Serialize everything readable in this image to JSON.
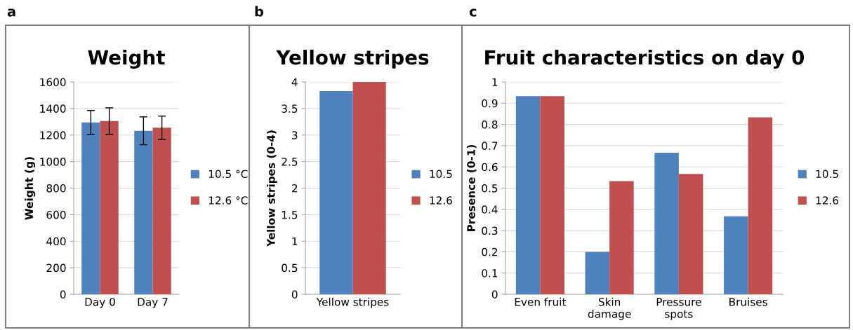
{
  "chart_data": [
    {
      "type": "bar",
      "title": "Weight",
      "ylabel": "Weight (g)",
      "annotations": [
        "a"
      ],
      "categories": [
        "Day 0",
        "Day 7"
      ],
      "series": [
        {
          "name": "10.5 °C",
          "color": "#4f81bd",
          "values": [
            1295,
            1232
          ],
          "errors": [
            90,
            105
          ]
        },
        {
          "name": "12.6 °C",
          "color": "#c0504d",
          "values": [
            1305,
            1255
          ],
          "errors": [
            100,
            88
          ]
        }
      ],
      "ylim": [
        0,
        1600
      ],
      "yticks": [
        0,
        200,
        400,
        600,
        800,
        1000,
        1200,
        1400,
        1600
      ],
      "grid": "y",
      "legend": "right"
    },
    {
      "type": "bar",
      "title": "Yellow stripes",
      "ylabel": "Yellow stripes (0-4)",
      "annotations": [
        "b"
      ],
      "categories": [
        "Yellow stripes"
      ],
      "series": [
        {
          "name": "10.5",
          "color": "#4f81bd",
          "values": [
            3.83
          ]
        },
        {
          "name": "12.6",
          "color": "#c0504d",
          "values": [
            4.0
          ]
        }
      ],
      "ylim": [
        0,
        4
      ],
      "yticks": [
        0,
        0.5,
        1,
        1.5,
        2,
        2.5,
        3,
        3.5,
        4
      ],
      "grid": "y",
      "legend": "right"
    },
    {
      "type": "bar",
      "title": "Fruit characteristics on day 0",
      "ylabel": "Presence (0-1)",
      "annotations": [
        "c"
      ],
      "categories": [
        "Even fruit",
        "Skin\ndamage",
        "Pressure\nspots",
        "Bruises"
      ],
      "series": [
        {
          "name": "10.5",
          "color": "#4f81bd",
          "values": [
            0.933,
            0.2,
            0.667,
            0.367
          ]
        },
        {
          "name": "12.6",
          "color": "#c0504d",
          "values": [
            0.933,
            0.533,
            0.567,
            0.833
          ]
        }
      ],
      "ylim": [
        0,
        1
      ],
      "yticks": [
        0,
        0.1,
        0.2,
        0.3,
        0.4,
        0.5,
        0.6,
        0.7,
        0.8,
        0.9,
        1
      ],
      "grid": "y",
      "legend": "right"
    }
  ]
}
